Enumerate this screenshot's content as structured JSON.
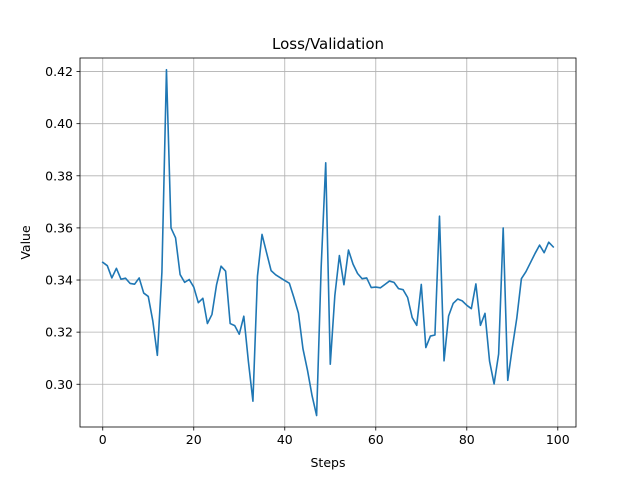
{
  "chart_data": {
    "type": "line",
    "title": "Loss/Validation",
    "xlabel": "Steps",
    "ylabel": "Value",
    "xlim": [
      -5,
      104
    ],
    "ylim": [
      0.2836,
      0.4252
    ],
    "grid": true,
    "legend": "none",
    "x_ticks": [
      0,
      20,
      40,
      60,
      80,
      100
    ],
    "x_tick_labels": [
      "0",
      "20",
      "40",
      "60",
      "80",
      "100"
    ],
    "y_ticks": [
      0.3,
      0.32,
      0.34,
      0.36,
      0.38,
      0.4,
      0.42
    ],
    "y_tick_labels": [
      "0.30",
      "0.32",
      "0.34",
      "0.36",
      "0.38",
      "0.40",
      "0.42"
    ],
    "series": [
      {
        "name": "Loss/Validation",
        "color": "#1f77b4",
        "x": [
          0,
          1,
          2,
          3,
          4,
          5,
          6,
          7,
          8,
          9,
          10,
          11,
          12,
          13,
          14,
          15,
          16,
          17,
          18,
          19,
          20,
          21,
          22,
          23,
          24,
          25,
          26,
          27,
          28,
          29,
          30,
          31,
          32,
          33,
          34,
          35,
          36,
          37,
          38,
          39,
          40,
          41,
          42,
          43,
          44,
          45,
          46,
          47,
          48,
          49,
          50,
          51,
          52,
          53,
          54,
          55,
          56,
          57,
          58,
          59,
          60,
          61,
          62,
          63,
          64,
          65,
          66,
          67,
          68,
          69,
          70,
          71,
          72,
          73,
          74,
          75,
          76,
          77,
          78,
          79,
          80,
          81,
          82,
          83,
          84,
          85,
          86,
          87,
          88,
          89,
          90,
          91,
          92,
          93,
          94,
          95,
          96,
          97,
          98,
          99
        ],
        "values": [
          0.3468,
          0.3455,
          0.3408,
          0.3445,
          0.3403,
          0.3407,
          0.3387,
          0.3384,
          0.3408,
          0.335,
          0.3337,
          0.3243,
          0.3111,
          0.343,
          0.4207,
          0.36,
          0.3562,
          0.3421,
          0.3391,
          0.3402,
          0.3373,
          0.3313,
          0.333,
          0.3233,
          0.3268,
          0.3381,
          0.3453,
          0.3434,
          0.3233,
          0.3225,
          0.3192,
          0.3261,
          0.3088,
          0.2935,
          0.3415,
          0.3575,
          0.3505,
          0.3436,
          0.342,
          0.3409,
          0.3398,
          0.3388,
          0.3333,
          0.3273,
          0.3136,
          0.3053,
          0.2956,
          0.288,
          0.345,
          0.385,
          0.3077,
          0.334,
          0.3494,
          0.3382,
          0.3515,
          0.3461,
          0.3425,
          0.3405,
          0.3408,
          0.3371,
          0.3373,
          0.337,
          0.3383,
          0.3396,
          0.3391,
          0.3367,
          0.3363,
          0.3333,
          0.3256,
          0.3226,
          0.3383,
          0.3141,
          0.3185,
          0.3189,
          0.3645,
          0.309,
          0.3262,
          0.331,
          0.3327,
          0.332,
          0.3303,
          0.329,
          0.3385,
          0.3226,
          0.3272,
          0.3089,
          0.3001,
          0.3116,
          0.36,
          0.3015,
          0.314,
          0.3255,
          0.3405,
          0.3432,
          0.3467,
          0.3502,
          0.3534,
          0.3505,
          0.3545,
          0.3527
        ]
      }
    ]
  }
}
